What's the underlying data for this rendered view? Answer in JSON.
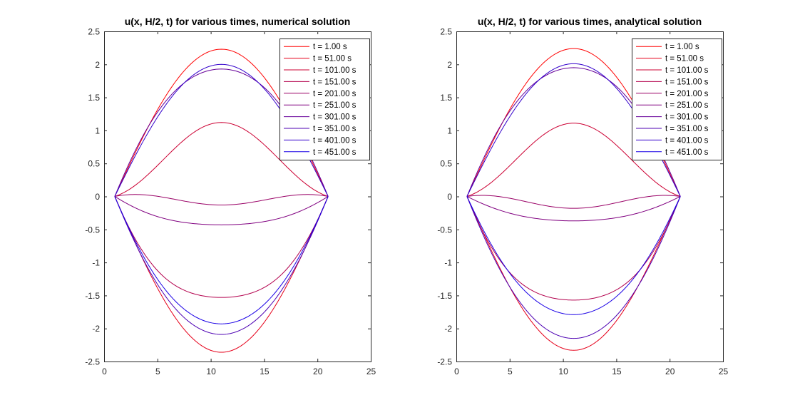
{
  "chart_data": [
    {
      "type": "line",
      "title": "u(x, H/2, t) for various times, numerical solution",
      "xlabel": "",
      "ylabel": "",
      "xlim": [
        0,
        25
      ],
      "ylim": [
        -2.5,
        2.5
      ],
      "xticks": [
        0,
        5,
        10,
        15,
        20,
        25
      ],
      "yticks": [
        -2.5,
        -2,
        -1.5,
        -1,
        -0.5,
        0,
        0.5,
        1,
        1.5,
        2,
        2.5
      ],
      "grid": false,
      "legend_position": "top-right",
      "x_domain": [
        1,
        21
      ],
      "series": [
        {
          "name": "t = 1.00 s",
          "color": "#ff0000",
          "peak": 2.23,
          "sharpness": 0
        },
        {
          "name": "t = 51.00 s",
          "color": "#e6001a",
          "peak": -2.36,
          "sharpness": 0
        },
        {
          "name": "t = 101.00 s",
          "color": "#cc0033",
          "peak": 1.12,
          "sharpness": -0.7
        },
        {
          "name": "t = 151.00 s",
          "color": "#b3004d",
          "peak": -1.53,
          "sharpness": 0.6
        },
        {
          "name": "t = 201.00 s",
          "color": "#990066",
          "peak": -0.13,
          "sharpness": -2.5
        },
        {
          "name": "t = 251.00 s",
          "color": "#800080",
          "peak": -0.43,
          "sharpness": 0.5
        },
        {
          "name": "t = 301.00 s",
          "color": "#660099",
          "peak": 1.93,
          "sharpness": 0.3
        },
        {
          "name": "t = 351.00 s",
          "color": "#4d00b3",
          "peak": -2.09,
          "sharpness": 0.2
        },
        {
          "name": "t = 401.00 s",
          "color": "#3300cc",
          "peak": 2.0,
          "sharpness": 0.05
        },
        {
          "name": "t = 451.00 s",
          "color": "#1a00e6",
          "peak": -1.93,
          "sharpness": 0.25
        }
      ]
    },
    {
      "type": "line",
      "title": "u(x, H/2, t) for various times, analytical solution",
      "xlabel": "",
      "ylabel": "",
      "xlim": [
        0,
        25
      ],
      "ylim": [
        -2.5,
        2.5
      ],
      "xticks": [
        0,
        5,
        10,
        15,
        20,
        25
      ],
      "yticks": [
        -2.5,
        -2,
        -1.5,
        -1,
        -0.5,
        0,
        0.5,
        1,
        1.5,
        2,
        2.5
      ],
      "grid": false,
      "legend_position": "top-right",
      "x_domain": [
        1,
        21
      ],
      "series": [
        {
          "name": "t = 1.00 s",
          "color": "#ff0000",
          "peak": 2.24,
          "sharpness": 0
        },
        {
          "name": "t = 51.00 s",
          "color": "#e6001a",
          "peak": -2.33,
          "sharpness": 0
        },
        {
          "name": "t = 101.00 s",
          "color": "#cc0033",
          "peak": 1.11,
          "sharpness": -0.7
        },
        {
          "name": "t = 151.00 s",
          "color": "#b3004d",
          "peak": -1.57,
          "sharpness": 0.6
        },
        {
          "name": "t = 201.00 s",
          "color": "#990066",
          "peak": -0.18,
          "sharpness": -1.8
        },
        {
          "name": "t = 251.00 s",
          "color": "#800080",
          "peak": -0.37,
          "sharpness": 0.4
        },
        {
          "name": "t = 301.00 s",
          "color": "#660099",
          "peak": 1.95,
          "sharpness": 0.3
        },
        {
          "name": "t = 351.00 s",
          "color": "#4d00b3",
          "peak": -2.15,
          "sharpness": 0.2
        },
        {
          "name": "t = 401.00 s",
          "color": "#3300cc",
          "peak": 2.01,
          "sharpness": 0.05
        },
        {
          "name": "t = 451.00 s",
          "color": "#1a00e6",
          "peak": -1.79,
          "sharpness": 0.25
        }
      ]
    }
  ]
}
